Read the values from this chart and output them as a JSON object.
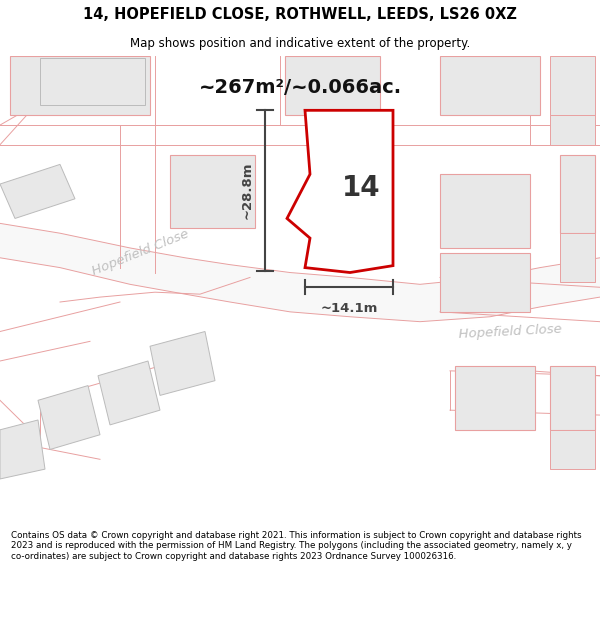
{
  "title_line1": "14, HOPEFIELD CLOSE, ROTHWELL, LEEDS, LS26 0XZ",
  "title_line2": "Map shows position and indicative extent of the property.",
  "area_label": "~267m²/~0.066ac.",
  "property_number": "14",
  "dim_width": "~14.1m",
  "dim_height": "~28.8m",
  "street_label1": "Hopefield Close",
  "street_label2": "Hopefield Close",
  "footer": "Contains OS data © Crown copyright and database right 2021. This information is subject to Crown copyright and database rights 2023 and is reproduced with the permission of HM Land Registry. The polygons (including the associated geometry, namely x, y co-ordinates) are subject to Crown copyright and database rights 2023 Ordnance Survey 100026316.",
  "bg_color": "#ffffff",
  "map_bg": "#ffffff",
  "plot_border_color": "#cc0000",
  "neighbor_fill": "#e8e8e8",
  "neighbor_border": "#e8a0a0",
  "dim_color": "#444444",
  "text_color": "#000000",
  "footer_color": "#000000",
  "street_text_color": "#c0c0c0",
  "pink_line": "#e8a0a0",
  "gray_line": "#cccccc"
}
